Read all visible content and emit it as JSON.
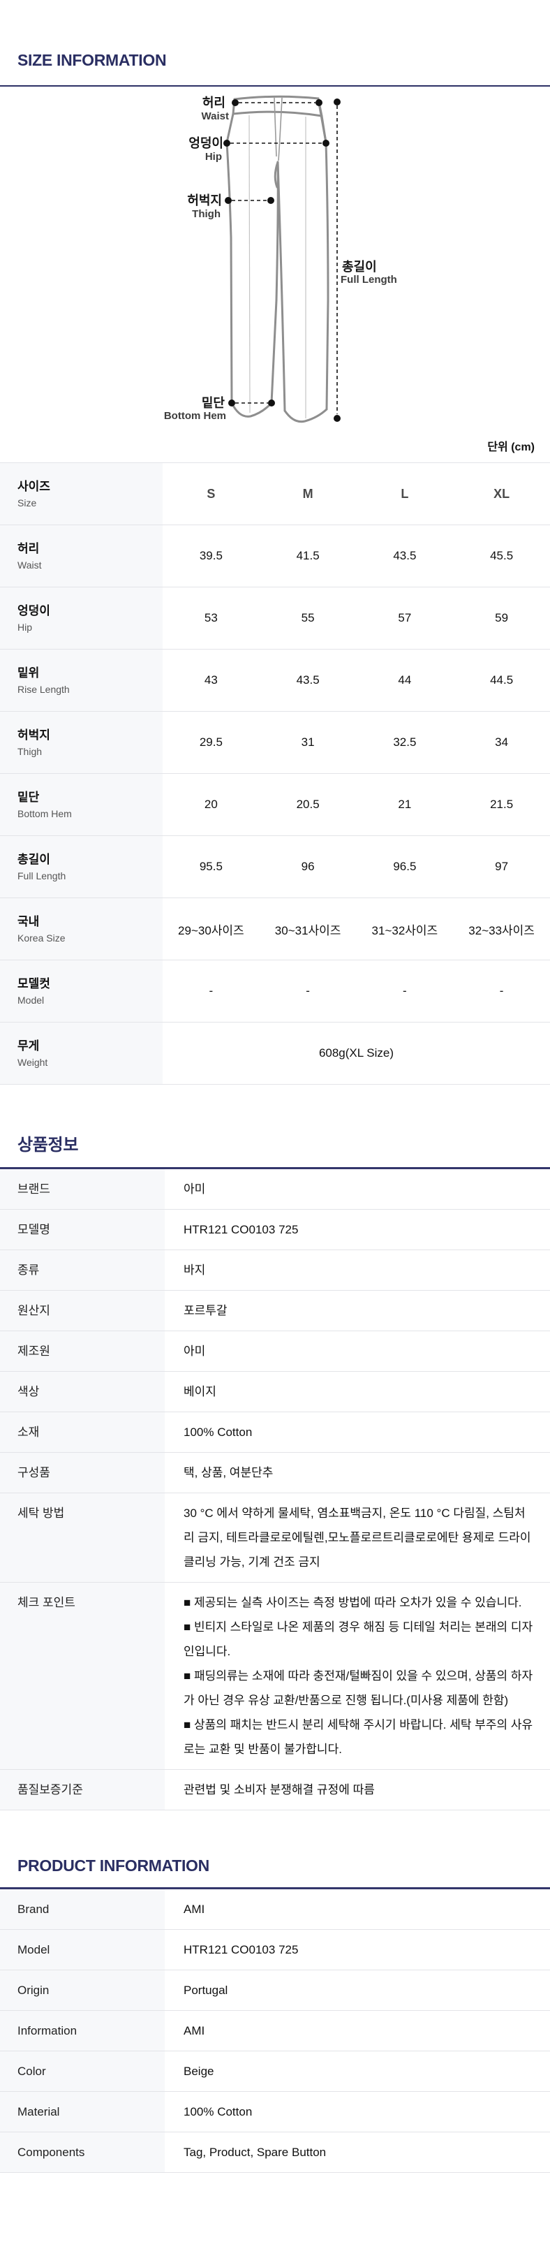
{
  "sections": {
    "size_title": "SIZE INFORMATION",
    "product_kr_title": "상품정보",
    "product_en_title": "PRODUCT INFORMATION"
  },
  "unit_label": "단위 (cm)",
  "diagram": {
    "waist_ko": "허리",
    "waist_en": "Waist",
    "hip_ko": "엉덩이",
    "hip_en": "Hip",
    "thigh_ko": "허벅지",
    "thigh_en": "Thigh",
    "full_length_ko": "총길이",
    "full_length_en": "Full Length",
    "bottom_hem_ko": "밑단",
    "bottom_hem_en": "Bottom Hem"
  },
  "size_table": {
    "header": {
      "label_ko": "사이즈",
      "label_en": "Size",
      "columns": [
        "S",
        "M",
        "L",
        "XL"
      ]
    },
    "rows": [
      {
        "label_ko": "허리",
        "label_en": "Waist",
        "values": [
          "39.5",
          "41.5",
          "43.5",
          "45.5"
        ]
      },
      {
        "label_ko": "엉덩이",
        "label_en": "Hip",
        "values": [
          "53",
          "55",
          "57",
          "59"
        ]
      },
      {
        "label_ko": "밑위",
        "label_en": "Rise Length",
        "values": [
          "43",
          "43.5",
          "44",
          "44.5"
        ]
      },
      {
        "label_ko": "허벅지",
        "label_en": "Thigh",
        "values": [
          "29.5",
          "31",
          "32.5",
          "34"
        ]
      },
      {
        "label_ko": "밑단",
        "label_en": "Bottom Hem",
        "values": [
          "20",
          "20.5",
          "21",
          "21.5"
        ]
      },
      {
        "label_ko": "총길이",
        "label_en": "Full Length",
        "values": [
          "95.5",
          "96",
          "96.5",
          "97"
        ]
      },
      {
        "label_ko": "국내",
        "label_en": "Korea Size",
        "values": [
          "29~30사이즈",
          "30~31사이즈",
          "31~32사이즈",
          "32~33사이즈"
        ]
      },
      {
        "label_ko": "모델컷",
        "label_en": "Model",
        "values": [
          "-",
          "-",
          "-",
          "-"
        ]
      },
      {
        "label_ko": "무게",
        "label_en": "Weight",
        "values": [
          "608g(XL Size)"
        ],
        "span": 4
      }
    ]
  },
  "product_info_kr": {
    "rows": [
      {
        "label": "브랜드",
        "value": "아미"
      },
      {
        "label": "모델명",
        "value": "HTR121 CO0103 725"
      },
      {
        "label": "종류",
        "value": "바지"
      },
      {
        "label": "원산지",
        "value": "포르투갈"
      },
      {
        "label": "제조원",
        "value": "아미"
      },
      {
        "label": "색상",
        "value": "베이지"
      },
      {
        "label": "소재",
        "value": "100% Cotton"
      },
      {
        "label": "구성품",
        "value": "택, 상품, 여분단추"
      },
      {
        "label": "세탁 방법",
        "value": "30 °C 에서 약하게 물세탁, 염소표백금지, 온도 110 °C 다림질, 스팀처리 금지, 테트라클로로에틸렌,모노플로르트리클로로에탄 용제로 드라이클리닝 가능, 기계 건조 금지"
      },
      {
        "label": "체크 포인트",
        "lines": [
          "■ 제공되는 실측 사이즈는 측정 방법에 따라 오차가 있을 수 있습니다.",
          "■ 빈티지 스타일로 나온 제품의 경우 해짐 등 디테일 처리는 본래의 디자인입니다.",
          "■ 패딩의류는 소재에 따라 충전재/털빠짐이 있을 수 있으며, 상품의 하자가 아닌 경우 유상 교환/반품으로 진행 됩니다.(미사용 제품에 한함)",
          "■ 상품의 패치는 반드시 분리 세탁해 주시기 바랍니다. 세탁 부주의 사유로는 교환 및 반품이 불가합니다."
        ]
      },
      {
        "label": "품질보증기준",
        "value": "관련법 및 소비자 분쟁해결 규정에 따름"
      }
    ]
  },
  "product_info_en": {
    "rows": [
      {
        "label": "Brand",
        "value": "AMI"
      },
      {
        "label": "Model",
        "value": "HTR121 CO0103 725"
      },
      {
        "label": "Origin",
        "value": "Portugal"
      },
      {
        "label": "Information",
        "value": "AMI"
      },
      {
        "label": "Color",
        "value": "Beige"
      },
      {
        "label": "Material",
        "value": "100% Cotton"
      },
      {
        "label": "Components",
        "value": "Tag, Product, Spare Button"
      }
    ]
  }
}
